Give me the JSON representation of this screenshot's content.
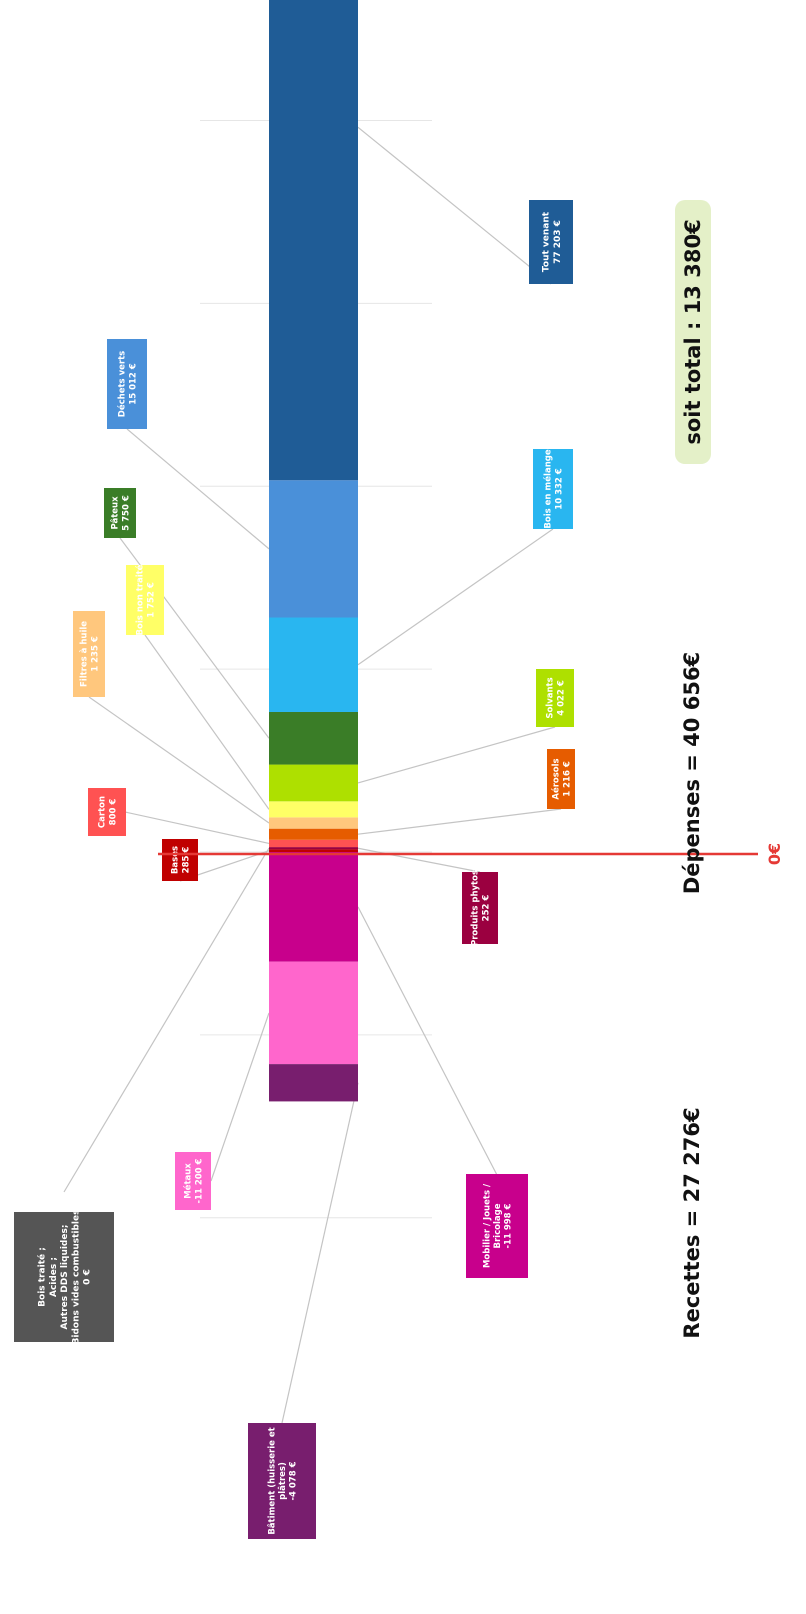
{
  "chart_data": {
    "type": "bar",
    "orientation": "stacked-horizontal-rotated",
    "title": "",
    "xlabel": "",
    "ylabel": "",
    "axis_range": [
      -40000,
      120000
    ],
    "grid": true,
    "axis_ticks": [
      {
        "value": -40000,
        "label": "-40 000 €"
      },
      {
        "value": -20000,
        "label": "-20 000 €"
      },
      {
        "value": 0,
        "label": "- €"
      },
      {
        "value": 20000,
        "label": "20 000 €"
      },
      {
        "value": 40000,
        "label": "40 000 €"
      },
      {
        "value": 60000,
        "label": "60 000 €"
      },
      {
        "value": 80000,
        "label": "80 000 €"
      },
      {
        "value": 100000,
        "label": "100 000 €"
      },
      {
        "value": 120000,
        "label": "120 000 €"
      }
    ],
    "positive_segments": [
      {
        "name": "Bois traité ; Acides ; Autres DDS liquides; Bidons vides combustibles",
        "value": 0,
        "color": "#555555",
        "label_lines": [
          "Bois traité ;",
          "Acides ;",
          "Autres DDS liquides;",
          "Bidons vides combustibles",
          "0 €"
        ]
      },
      {
        "name": "Bases",
        "value": 285,
        "color": "#c00000",
        "label_lines": [
          "Bases",
          "285 €"
        ]
      },
      {
        "name": "Produits phytos",
        "value": 252,
        "color": "#9b0040",
        "label_lines": [
          "Produits phytos",
          "252 €"
        ]
      },
      {
        "name": "Carton",
        "value": 800,
        "color": "#ff5252",
        "label_lines": [
          "Carton",
          "800 €"
        ]
      },
      {
        "name": "Aérosols",
        "value": 1216,
        "color": "#e65c00",
        "label_lines": [
          "Aérosols",
          "1 216 €"
        ]
      },
      {
        "name": "Filtres à huile",
        "value": 1235,
        "color": "#ffc77d",
        "label_lines": [
          "Filtres à huile",
          "1 235 €"
        ]
      },
      {
        "name": "Bois non traité",
        "value": 1752,
        "color": "#ffff66",
        "label_lines": [
          "Bois non traité",
          "1 752 €"
        ]
      },
      {
        "name": "Solvants",
        "value": 4022,
        "color": "#aee000",
        "label_lines": [
          "Solvants",
          "4 022 €"
        ]
      },
      {
        "name": "Pâteux",
        "value": 5750,
        "color": "#3a7d27",
        "label_lines": [
          "Pâteux",
          "5 750 €"
        ]
      },
      {
        "name": "Bois en mélange",
        "value": 10332,
        "color": "#29b6f0",
        "label_lines": [
          "Bois en mélange",
          "10 332 €"
        ]
      },
      {
        "name": "Déchets verts",
        "value": 15012,
        "color": "#4a90d9",
        "label_lines": [
          "Déchets verts",
          "15 012 €"
        ]
      },
      {
        "name": "Tout venant",
        "value": 77203,
        "color": "#1f5c96",
        "label_lines": [
          "Tout venant",
          "77 203 €"
        ]
      }
    ],
    "negative_segments": [
      {
        "name": "Mobilier / Jouets / Bricolage",
        "value": -11998,
        "color": "#c8008c",
        "label_lines": [
          "Mobilier / Jouets /",
          "Bricolage",
          "-11 998 €"
        ]
      },
      {
        "name": "Métaux",
        "value": -11200,
        "color": "#ff66cc",
        "label_lines": [
          "Métaux",
          "-11 200 €"
        ]
      },
      {
        "name": "Bâtiment (huisserie et plâtres)",
        "value": -4078,
        "color": "#781e6e",
        "label_lines": [
          "Bâtiment (huisserie et",
          "plâtres)",
          "-4 078 €"
        ]
      }
    ],
    "annotations": {
      "total": "soit total : 13 380€",
      "depenses": "Dépenses = 40 656€",
      "recettes": "Recettes = 27 276€",
      "zero": "0€"
    }
  },
  "colors": {
    "zero_line": "#e53935",
    "total_badge_bg": "#e4f0c8",
    "leader_line": "#c4c4c4",
    "grid": "#e6e6e6"
  }
}
